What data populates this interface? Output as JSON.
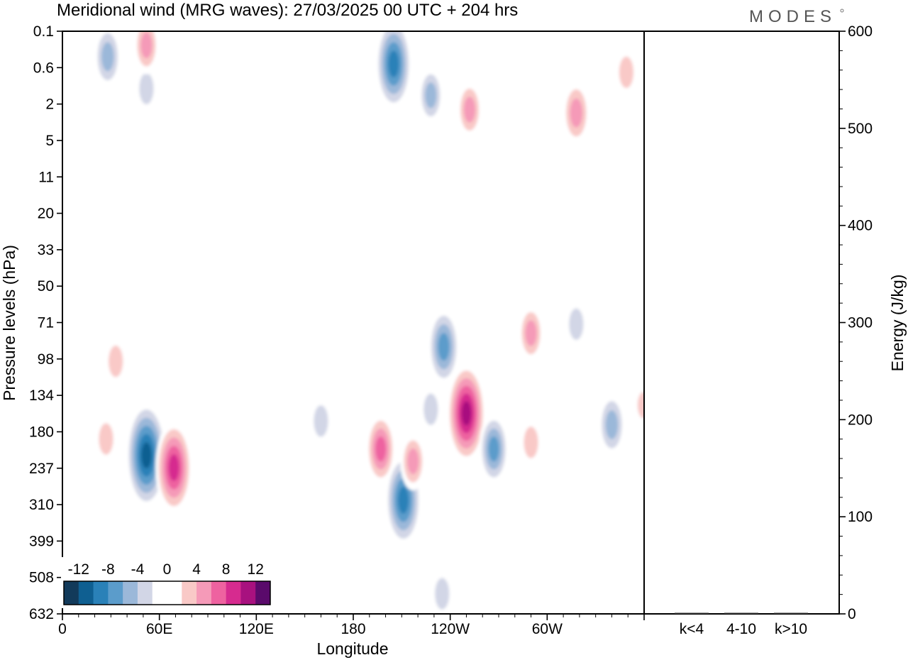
{
  "chart_data": [
    {
      "type": "heatmap",
      "title": "Meridional wind (MRG waves):  27/03/2025  00 UTC  + 204 hrs",
      "xlabel": "Longitude",
      "ylabel": "Pressure levels (hPa)",
      "x_ticks": [
        "0",
        "60E",
        "120E",
        "180",
        "120W",
        "60W"
      ],
      "x_tick_degrees": [
        0,
        60,
        120,
        180,
        240,
        300
      ],
      "xlim": [
        0,
        360
      ],
      "y_levels": [
        "0.1",
        "0.6",
        "2",
        "5",
        "11",
        "20",
        "33",
        "50",
        "71",
        "98",
        "134",
        "180",
        "237",
        "310",
        "399",
        "508",
        "632"
      ],
      "colorbar": {
        "labels": [
          "-12",
          "-8",
          "-4",
          "0",
          "4",
          "8",
          "12"
        ],
        "label_values": [
          -12,
          -8,
          -4,
          0,
          4,
          8,
          12
        ],
        "step": 2,
        "colors": [
          "#123a5a",
          "#0f5f91",
          "#2a81b8",
          "#5b9ccb",
          "#9bb8d9",
          "#d2d6e6",
          "#ffffff",
          "#ffffff",
          "#f9c9c7",
          "#f59ab8",
          "#ee62a0",
          "#d62b8f",
          "#a8117f",
          "#5a0a6b"
        ]
      },
      "features": [
        {
          "lon": 28,
          "level": 0.35,
          "value": -6
        },
        {
          "lon": 52,
          "level": 1.2,
          "value": -4
        },
        {
          "lon": 52,
          "level": 0.2,
          "value": 5
        },
        {
          "lon": 205,
          "level": 0.5,
          "value": -10
        },
        {
          "lon": 228,
          "level": 1.5,
          "value": -5
        },
        {
          "lon": 252,
          "level": 2.3,
          "value": 5
        },
        {
          "lon": 318,
          "level": 2.5,
          "value": 6
        },
        {
          "lon": 349,
          "level": 0.7,
          "value": 4
        },
        {
          "lon": 32,
          "level": 12,
          "value": 2
        },
        {
          "lon": 90,
          "level": 5,
          "value": -2
        },
        {
          "lon": 170,
          "level": 6,
          "value": 2
        },
        {
          "lon": 240,
          "level": 4,
          "value": -2
        },
        {
          "lon": 18,
          "level": 31,
          "value": -2
        },
        {
          "lon": 40,
          "level": 40,
          "value": 2
        },
        {
          "lon": 115,
          "level": 55,
          "value": 2
        },
        {
          "lon": 236,
          "level": 88,
          "value": -8
        },
        {
          "lon": 290,
          "level": 78,
          "value": 5
        },
        {
          "lon": 318,
          "level": 72,
          "value": -4
        },
        {
          "lon": 33,
          "level": 100,
          "value": 4
        },
        {
          "lon": 27,
          "level": 190,
          "value": 4
        },
        {
          "lon": 52,
          "level": 215,
          "value": -12
        },
        {
          "lon": 69,
          "level": 236,
          "value": 10
        },
        {
          "lon": 83,
          "level": 185,
          "value": -2
        },
        {
          "lon": 160,
          "level": 165,
          "value": -4
        },
        {
          "lon": 197,
          "level": 205,
          "value": 7
        },
        {
          "lon": 211,
          "level": 300,
          "value": -10
        },
        {
          "lon": 217,
          "level": 225,
          "value": 5
        },
        {
          "lon": 228,
          "level": 150,
          "value": -4
        },
        {
          "lon": 250,
          "level": 155,
          "value": 11
        },
        {
          "lon": 267,
          "level": 205,
          "value": -7
        },
        {
          "lon": 290,
          "level": 195,
          "value": 4
        },
        {
          "lon": 340,
          "level": 170,
          "value": -6
        },
        {
          "lon": 360,
          "level": 145,
          "value": 3
        },
        {
          "lon": 235,
          "level": 560,
          "value": -4
        },
        {
          "lon": 200,
          "level": 540,
          "value": 2
        }
      ]
    },
    {
      "type": "bar",
      "ylabel": "Energy (J/kg)",
      "categories": [
        "k<4",
        "4-10",
        "k>10"
      ],
      "values": [
        0,
        1,
        0
      ],
      "ylim": [
        0,
        600
      ],
      "y_ticks": [
        "0",
        "100",
        "200",
        "300",
        "400",
        "500",
        "600"
      ],
      "y_tick_values": [
        0,
        100,
        200,
        300,
        400,
        500,
        600
      ]
    }
  ],
  "brand": "MODES"
}
